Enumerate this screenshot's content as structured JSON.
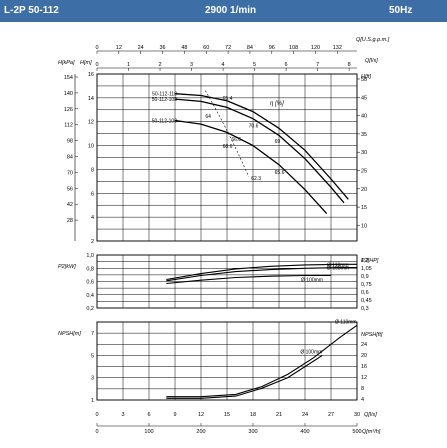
{
  "header": {
    "model": "L-2P 50-112",
    "speed": "2900 1/min",
    "frequency": "50Hz"
  },
  "chart_data": [
    {
      "type": "line",
      "name": "head",
      "left_axis_labels": {
        "pressure": "H[kPa]",
        "meters": "H[m]"
      },
      "right_axis_label": "H[ft]",
      "top_axis_labels": {
        "usgpm": "Q[U.S.g.p.m.]",
        "ls": "Q[l/s]"
      },
      "top_usgpm_ticks": [
        "0",
        "12",
        "24",
        "36",
        "48",
        "60",
        "72",
        "84",
        "96",
        "108",
        "120",
        "132"
      ],
      "top_ls_ticks": [
        "0",
        "1",
        "2",
        "3",
        "4",
        "5",
        "6",
        "7",
        "8"
      ],
      "kpa_ticks": [
        "154",
        "140",
        "126",
        "112",
        "98",
        "84",
        "70",
        "56",
        "42",
        "28"
      ],
      "m_ticks": [
        "16",
        "14",
        "12",
        "10",
        "8",
        "6",
        "4",
        "2"
      ],
      "ft_ticks": [
        "50",
        "45",
        "40",
        "35",
        "30",
        "25",
        "20",
        "15",
        "10"
      ],
      "eta_label": "η [%]",
      "xlim": [
        0,
        30
      ],
      "ylim": [
        2,
        16
      ],
      "series": [
        {
          "name": "50-112-110",
          "x": [
            9,
            12,
            15,
            18,
            21,
            24,
            27,
            29
          ],
          "y": [
            14.35,
            14.2,
            13.75,
            12.85,
            11.45,
            9.6,
            7.2,
            5.5
          ]
        },
        {
          "name": "50-112-108",
          "x": [
            9,
            12,
            15,
            18,
            21,
            24,
            27,
            28.5
          ],
          "y": [
            13.9,
            13.7,
            13.2,
            12.25,
            10.85,
            8.9,
            6.5,
            5.2
          ]
        },
        {
          "name": "50-112-100",
          "x": [
            9,
            12,
            15,
            18,
            21,
            24,
            26.5
          ],
          "y": [
            12.1,
            11.8,
            11.1,
            10.0,
            8.4,
            6.3,
            4.3
          ]
        }
      ],
      "efficiency_labels": [
        {
          "text": "65.4",
          "x": 14.5,
          "y": 13.8
        },
        {
          "text": "64",
          "x": 12.5,
          "y": 12.3
        },
        {
          "text": "70.6",
          "x": 17.5,
          "y": 11.5
        },
        {
          "text": "69",
          "x": 20.5,
          "y": 10.2
        },
        {
          "text": "66.6",
          "x": 15.5,
          "y": 10.4
        },
        {
          "text": "68.6",
          "x": 14.5,
          "y": 9.8
        },
        {
          "text": "62.3",
          "x": 17.8,
          "y": 7.1
        },
        {
          "text": "65.6",
          "x": 20.5,
          "y": 7.6
        }
      ]
    },
    {
      "type": "line",
      "name": "power",
      "left_axis_label": "P2[kW]",
      "right_axis_label": "P2[HP]",
      "left_ticks": [
        "1,0",
        "0,8",
        "0,6",
        "0,4",
        "0,2"
      ],
      "right_ticks": [
        "1,2",
        "1,05",
        "0,9",
        "0,75",
        "0,6",
        "0,45",
        "0,3"
      ],
      "xlim": [
        0,
        30
      ],
      "ylim": [
        0.2,
        1.0
      ],
      "series": [
        {
          "name": "Ø 110mm",
          "x": [
            8,
            12,
            16,
            20,
            24,
            28,
            30
          ],
          "y": [
            0.63,
            0.72,
            0.79,
            0.83,
            0.85,
            0.86,
            0.86
          ]
        },
        {
          "name": "Ø 108mm",
          "x": [
            8,
            12,
            16,
            20,
            24,
            28,
            30
          ],
          "y": [
            0.61,
            0.69,
            0.75,
            0.78,
            0.8,
            0.81,
            0.81
          ]
        },
        {
          "name": "Ø 100mm",
          "x": [
            8,
            12,
            16,
            20,
            24,
            27
          ],
          "y": [
            0.57,
            0.62,
            0.66,
            0.68,
            0.69,
            0.69
          ]
        }
      ]
    },
    {
      "type": "line",
      "name": "npsh",
      "left_axis_label": "NPSH[m]",
      "right_axis_label": "NPSH[ft]",
      "left_ticks": [
        "7",
        "5",
        "3",
        "1"
      ],
      "right_ticks": [
        "24",
        "20",
        "16",
        "12",
        "8",
        "4"
      ],
      "bottom_axis_labels": {
        "ls": "Q[l/s]",
        "m3h": "Q[m³/h]"
      },
      "bottom_ls_ticks": [
        "0",
        "3",
        "6",
        "9",
        "12",
        "15",
        "18",
        "21",
        "24",
        "27",
        "30"
      ],
      "bottom_m3h_ticks": [
        "0",
        "100",
        "200",
        "300",
        "400",
        "500"
      ],
      "xlim": [
        0,
        30
      ],
      "ylim": [
        1,
        8
      ],
      "series": [
        {
          "name": "Ø 110mm",
          "x": [
            8,
            12,
            16,
            19,
            22,
            25,
            28,
            30
          ],
          "y": [
            1.3,
            1.3,
            1.5,
            2.2,
            3.3,
            4.8,
            6.6,
            7.7
          ]
        },
        {
          "name": "Ø 100mm",
          "x": [
            8,
            12,
            16,
            19,
            22,
            24,
            26
          ],
          "y": [
            1.15,
            1.15,
            1.35,
            2.05,
            3.0,
            4.0,
            5.0
          ]
        }
      ]
    }
  ]
}
